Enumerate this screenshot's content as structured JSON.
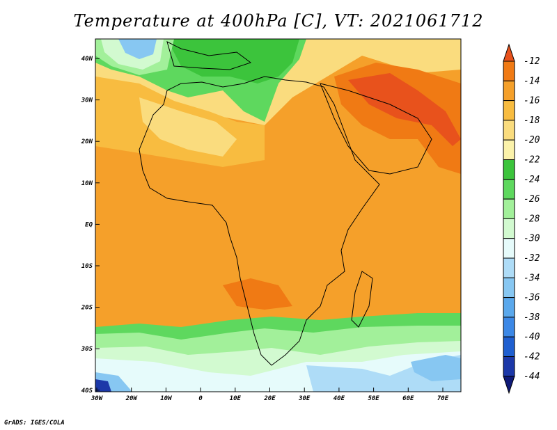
{
  "title": "Temperature at 400hPa [C], VT: 2021061712",
  "credit": "GrADS: IGES/COLA",
  "map": {
    "lat_labels": [
      "40N",
      "30N",
      "20N",
      "10N",
      "EQ",
      "10S",
      "20S",
      "30S",
      "40S"
    ],
    "lon_labels": [
      "30W",
      "20W",
      "10W",
      "0",
      "10E",
      "20E",
      "30E",
      "40E",
      "50E",
      "60E",
      "70E"
    ],
    "lat_range": [
      -40,
      45
    ],
    "lon_range": [
      -30,
      76
    ]
  },
  "colorbar": {
    "labels": [
      "-12",
      "-14",
      "-16",
      "-18",
      "-20",
      "-22",
      "-24",
      "-26",
      "-28",
      "-30",
      "-32",
      "-34",
      "-36",
      "-38",
      "-40",
      "-42",
      "-44"
    ],
    "colors": [
      "#e8521c",
      "#f07a14",
      "#f5a02a",
      "#f8bc40",
      "#fadc7e",
      "#fbf2aa",
      "#3cc43c",
      "#5ed85e",
      "#a2f09a",
      "#d2fad0",
      "#e6fbfb",
      "#aedcf7",
      "#87c7f2",
      "#5aa8ec",
      "#3c88e6",
      "#1f5fd0",
      "#1c38a8",
      "#0f1a78"
    ]
  }
}
